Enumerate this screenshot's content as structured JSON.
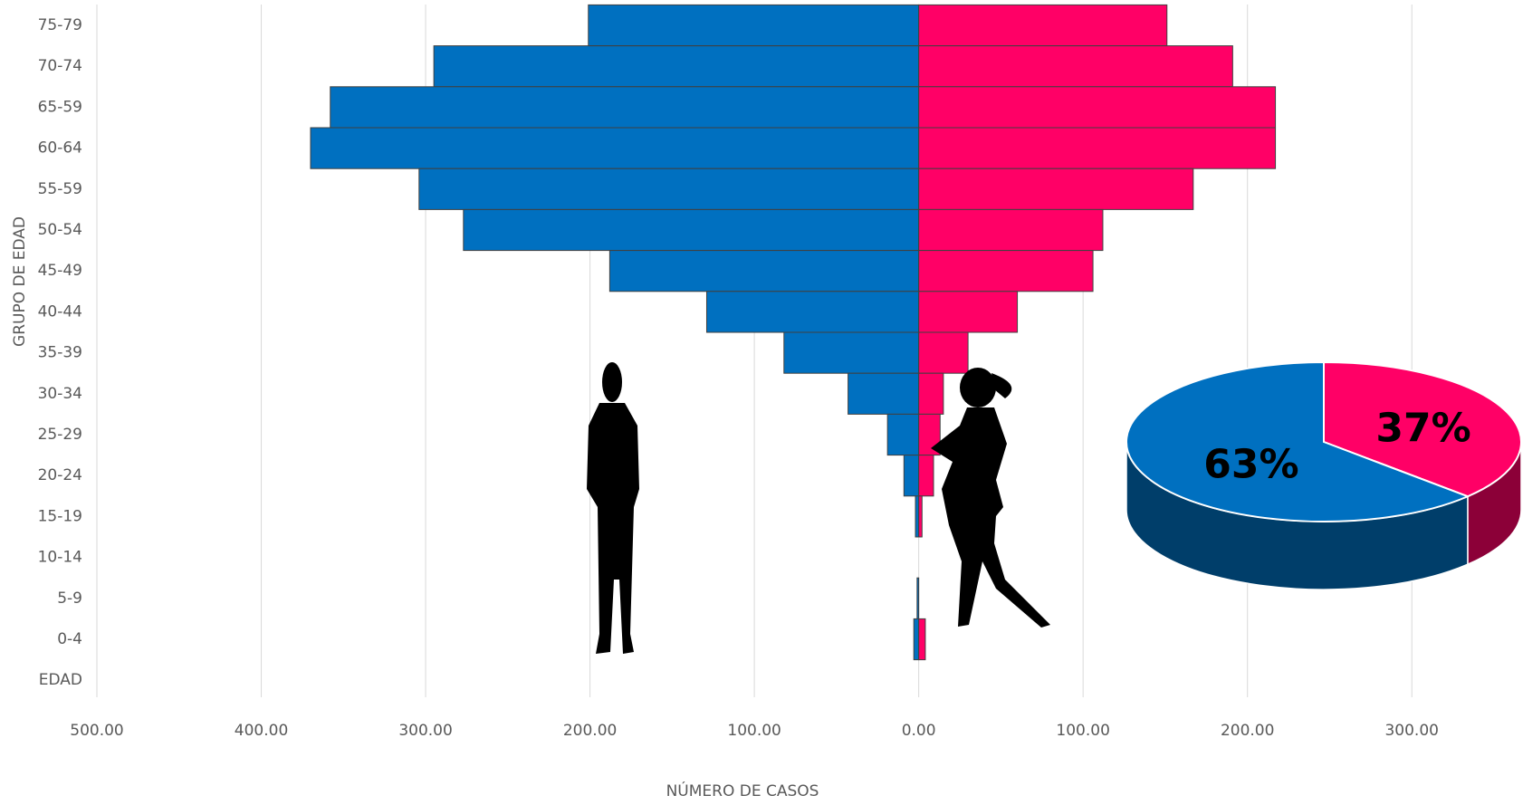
{
  "chart_data": [
    {
      "type": "pyramid",
      "categories": [
        "75-79",
        "70-74",
        "65-59",
        "60-64",
        "55-59",
        "50-54",
        "45-49",
        "40-44",
        "35-39",
        "30-34",
        "25-29",
        "20-24",
        "15-19",
        "10-14",
        "5-9",
        "0-4",
        "EDAD"
      ],
      "series": [
        {
          "color": "#0070c0",
          "values": [
            -201,
            -295,
            -358,
            -370,
            -304,
            -277,
            -188,
            -129,
            -82,
            -43,
            -19,
            -9,
            -2,
            0,
            -1,
            -3,
            null
          ]
        },
        {
          "color": "#ff0066",
          "values": [
            151,
            191,
            217,
            217,
            167,
            112,
            106,
            60,
            30,
            15,
            13,
            9,
            2,
            0,
            0,
            4,
            null
          ]
        }
      ],
      "xlabel": "NÚMERO DE CASOS",
      "ylabel": "GRUPO DE EDAD",
      "xlim": [
        -500,
        350
      ],
      "xticks": [
        {
          "value": -500,
          "label": "500.00"
        },
        {
          "value": -400,
          "label": "400.00"
        },
        {
          "value": -300,
          "label": "300.00"
        },
        {
          "value": -200,
          "label": "200.00"
        },
        {
          "value": -100,
          "label": "100.00"
        },
        {
          "value": 0,
          "label": "0.00"
        },
        {
          "value": 100,
          "label": "100.00"
        },
        {
          "value": 200,
          "label": "200.00"
        },
        {
          "value": 300,
          "label": "300.00"
        }
      ],
      "grid": true
    },
    {
      "type": "pie3d",
      "values": [
        63,
        37
      ],
      "value_labels": [
        "63%",
        "37%"
      ],
      "colors": [
        "#0070c0",
        "#ff0066"
      ]
    }
  ]
}
